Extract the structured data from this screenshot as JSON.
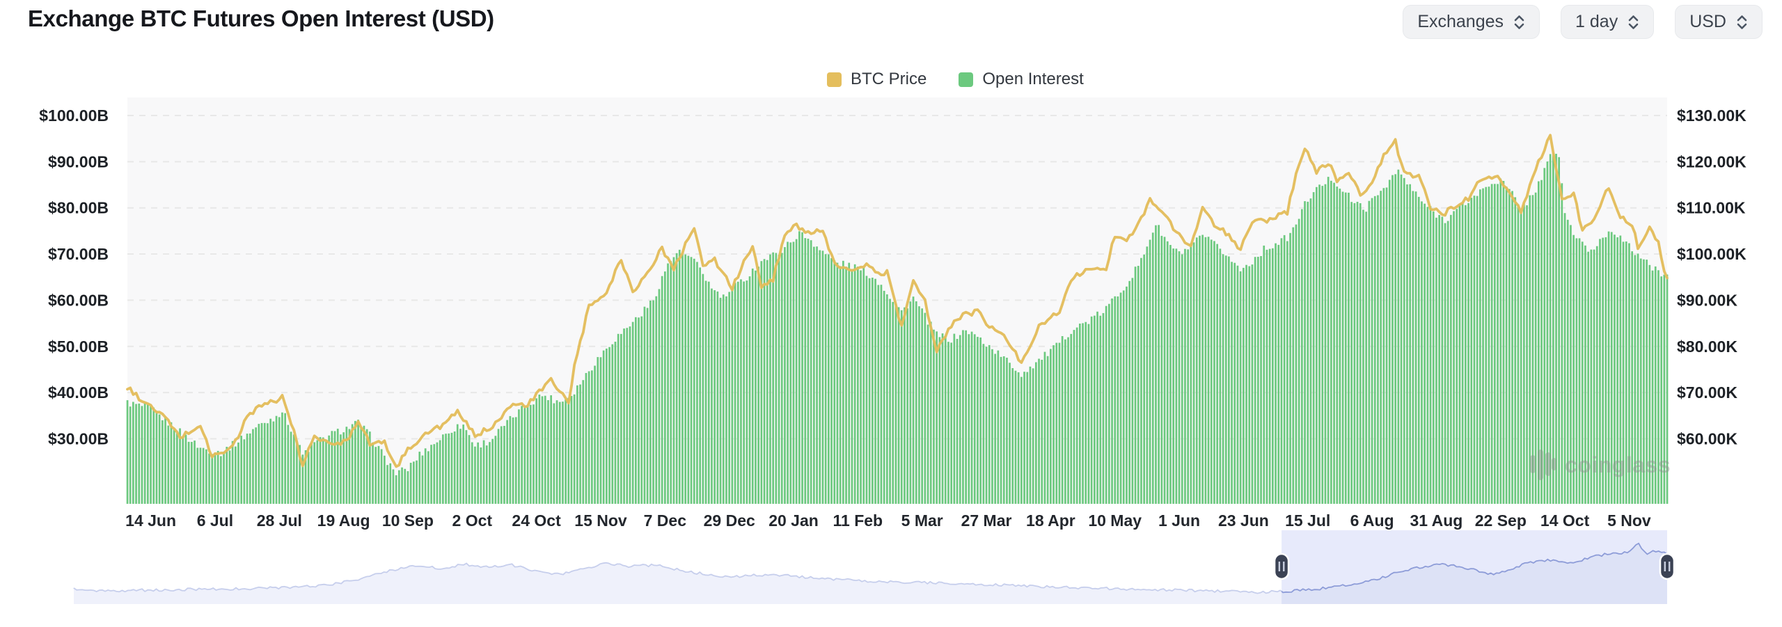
{
  "header": {
    "title": "Exchange BTC Futures Open Interest (USD)"
  },
  "controls": [
    {
      "id": "exchanges",
      "label": "Exchanges"
    },
    {
      "id": "interval",
      "label": "1 day"
    },
    {
      "id": "currency",
      "label": "USD"
    }
  ],
  "legend": [
    {
      "label": "BTC Price",
      "color": "#e4be5d"
    },
    {
      "label": "Open Interest",
      "color": "#6cc97f"
    }
  ],
  "watermark": {
    "text": "coinglass"
  },
  "chart_data": {
    "type": "bar+line",
    "title": "Exchange BTC Futures Open Interest (USD)",
    "visible_range": {
      "start": "2024-06-06",
      "end": "2025-11-15",
      "days": 527
    },
    "grid": "horizontal-dashed",
    "plot_bg": "#f8f8f9",
    "grid_color": "#e8e8e8",
    "left_axis": {
      "series": "Open Interest",
      "unit": "USD billions",
      "tick_labels": [
        "$100.00B",
        "$90.00B",
        "$80.00B",
        "$70.00B",
        "$60.00B",
        "$50.00B",
        "$40.00B",
        "$30.00B"
      ],
      "tick_values": [
        100,
        90,
        80,
        70,
        60,
        50,
        40,
        30
      ]
    },
    "right_axis": {
      "series": "BTC Price",
      "unit": "USD thousands",
      "tick_labels": [
        "$130.00K",
        "$120.00K",
        "$110.00K",
        "$100.00K",
        "$90.00K",
        "$80.00K",
        "$70.00K",
        "$60.00K"
      ],
      "tick_values": [
        130,
        120,
        110,
        100,
        90,
        80,
        70,
        60
      ]
    },
    "x_ticks": [
      "14 Jun",
      "6 Jul",
      "28 Jul",
      "19 Aug",
      "10 Sep",
      "2 Oct",
      "24 Oct",
      "15 Nov",
      "7 Dec",
      "29 Dec",
      "20 Jan",
      "11 Feb",
      "5 Mar",
      "27 Mar",
      "18 Apr",
      "10 May",
      "1 Jun",
      "23 Jun",
      "15 Jul",
      "6 Aug",
      "31 Aug",
      "22 Sep",
      "14 Oct",
      "5 Nov"
    ],
    "x_tick_interval_days": 22,
    "x_tick_first_day_offset": 8,
    "series": [
      {
        "name": "Open Interest",
        "type": "bar",
        "axis": "left",
        "color": "#6cc97f",
        "keypoints_day_value": [
          [
            0,
            37.8
          ],
          [
            8,
            36.5
          ],
          [
            14,
            33.5
          ],
          [
            20,
            30.5
          ],
          [
            25,
            28
          ],
          [
            32,
            27
          ],
          [
            38,
            29.5
          ],
          [
            44,
            32.5
          ],
          [
            50,
            34.5
          ],
          [
            53,
            36
          ],
          [
            57,
            31
          ],
          [
            60,
            26.5
          ],
          [
            64,
            29
          ],
          [
            70,
            31
          ],
          [
            76,
            32.5
          ],
          [
            79,
            33.5
          ],
          [
            84,
            30
          ],
          [
            88,
            26
          ],
          [
            92,
            22.5
          ],
          [
            96,
            23.5
          ],
          [
            100,
            26.5
          ],
          [
            106,
            29.5
          ],
          [
            111,
            32
          ],
          [
            115,
            33
          ],
          [
            119,
            28.5
          ],
          [
            124,
            29.5
          ],
          [
            130,
            33.5
          ],
          [
            136,
            37
          ],
          [
            142,
            39.5
          ],
          [
            148,
            38
          ],
          [
            152,
            39.5
          ],
          [
            156,
            43
          ],
          [
            160,
            46.5
          ],
          [
            165,
            50.5
          ],
          [
            170,
            53.5
          ],
          [
            175,
            56.5
          ],
          [
            180,
            60
          ],
          [
            184,
            66.5
          ],
          [
            188,
            70.5
          ],
          [
            192,
            69.5
          ],
          [
            196,
            67
          ],
          [
            200,
            62.5
          ],
          [
            204,
            60.5
          ],
          [
            208,
            63
          ],
          [
            212,
            65
          ],
          [
            217,
            68.5
          ],
          [
            222,
            70
          ],
          [
            226,
            72
          ],
          [
            230,
            74.5
          ],
          [
            234,
            73
          ],
          [
            238,
            70.5
          ],
          [
            243,
            68
          ],
          [
            248,
            67.5
          ],
          [
            253,
            66
          ],
          [
            258,
            63.5
          ],
          [
            262,
            60
          ],
          [
            265,
            57.5
          ],
          [
            269,
            60.5
          ],
          [
            273,
            56.5
          ],
          [
            277,
            52.5
          ],
          [
            282,
            51.5
          ],
          [
            287,
            53.5
          ],
          [
            291,
            52
          ],
          [
            296,
            49.5
          ],
          [
            300,
            47.5
          ],
          [
            306,
            44
          ],
          [
            312,
            47
          ],
          [
            318,
            50
          ],
          [
            323,
            53.5
          ],
          [
            329,
            55.5
          ],
          [
            334,
            57.5
          ],
          [
            338,
            60.5
          ],
          [
            343,
            64.5
          ],
          [
            347,
            68.5
          ],
          [
            350,
            73.5
          ],
          [
            352,
            76.5
          ],
          [
            356,
            72.5
          ],
          [
            360,
            70
          ],
          [
            364,
            71.5
          ],
          [
            368,
            74
          ],
          [
            372,
            72
          ],
          [
            376,
            70
          ],
          [
            381,
            66.5
          ],
          [
            385,
            68.5
          ],
          [
            389,
            71
          ],
          [
            394,
            72.5
          ],
          [
            398,
            74
          ],
          [
            401,
            78
          ],
          [
            404,
            82
          ],
          [
            408,
            84.5
          ],
          [
            412,
            86.5
          ],
          [
            416,
            84
          ],
          [
            420,
            81
          ],
          [
            424,
            80
          ],
          [
            428,
            83
          ],
          [
            432,
            86
          ],
          [
            435,
            88
          ],
          [
            439,
            84.5
          ],
          [
            443,
            81.5
          ],
          [
            447,
            79
          ],
          [
            451,
            77.5
          ],
          [
            455,
            79.5
          ],
          [
            459,
            81.5
          ],
          [
            463,
            83.5
          ],
          [
            467,
            85.5
          ],
          [
            470,
            86
          ],
          [
            474,
            83
          ],
          [
            477,
            79.5
          ],
          [
            482,
            84
          ],
          [
            485,
            88
          ],
          [
            488,
            92.5
          ],
          [
            490,
            91
          ],
          [
            492,
            79
          ],
          [
            495,
            74.5
          ],
          [
            498,
            72
          ],
          [
            501,
            70.5
          ],
          [
            504,
            73
          ],
          [
            508,
            75.5
          ],
          [
            511,
            73.5
          ],
          [
            514,
            71.5
          ],
          [
            517,
            70
          ],
          [
            520,
            68
          ],
          [
            523,
            66.5
          ],
          [
            527,
            65.5
          ]
        ]
      },
      {
        "name": "BTC Price",
        "type": "line",
        "axis": "right",
        "color": "#e3bd5c",
        "keypoints_day_value": [
          [
            0,
            71
          ],
          [
            8,
            66.8
          ],
          [
            12,
            65.2
          ],
          [
            18,
            60.3
          ],
          [
            25,
            62.9
          ],
          [
            29,
            56.2
          ],
          [
            33,
            57
          ],
          [
            37,
            59.3
          ],
          [
            41,
            64.8
          ],
          [
            46,
            67.5
          ],
          [
            51,
            68
          ],
          [
            53,
            69.3
          ],
          [
            57,
            61.4
          ],
          [
            60,
            54
          ],
          [
            64,
            60.9
          ],
          [
            69,
            58.7
          ],
          [
            75,
            59.5
          ],
          [
            79,
            64.2
          ],
          [
            83,
            59
          ],
          [
            88,
            59.1
          ],
          [
            92,
            53.9
          ],
          [
            96,
            57.6
          ],
          [
            100,
            60
          ],
          [
            104,
            61.7
          ],
          [
            109,
            63.4
          ],
          [
            113,
            65.8
          ],
          [
            119,
            60.7
          ],
          [
            124,
            62.3
          ],
          [
            131,
            67
          ],
          [
            137,
            67.4
          ],
          [
            145,
            72.7
          ],
          [
            151,
            67.9
          ],
          [
            153,
            75.6
          ],
          [
            158,
            88.7
          ],
          [
            163,
            90.6
          ],
          [
            169,
            98.9
          ],
          [
            173,
            91.9
          ],
          [
            178,
            95.9
          ],
          [
            183,
            101.2
          ],
          [
            187,
            96.6
          ],
          [
            194,
            106.1
          ],
          [
            197,
            97.5
          ],
          [
            201,
            98.7
          ],
          [
            207,
            92.6
          ],
          [
            214,
            102.1
          ],
          [
            217,
            92.5
          ],
          [
            221,
            94.5
          ],
          [
            225,
            104.5
          ],
          [
            229,
            106.1
          ],
          [
            233,
            104.8
          ],
          [
            238,
            104.7
          ],
          [
            242,
            97.8
          ],
          [
            246,
            96.5
          ],
          [
            253,
            97.5
          ],
          [
            257,
            95.6
          ],
          [
            260,
            96.1
          ],
          [
            265,
            84.2
          ],
          [
            269,
            94.2
          ],
          [
            273,
            89.9
          ],
          [
            277,
            78.6
          ],
          [
            281,
            83.9
          ],
          [
            286,
            86.8
          ],
          [
            291,
            87.5
          ],
          [
            295,
            84.3
          ],
          [
            300,
            82.5
          ],
          [
            306,
            76.3
          ],
          [
            312,
            84.5
          ],
          [
            319,
            87.5
          ],
          [
            323,
            94.7
          ],
          [
            329,
            96.5
          ],
          [
            335,
            97
          ],
          [
            338,
            104.1
          ],
          [
            342,
            103.3
          ],
          [
            346,
            106.4
          ],
          [
            350,
            111.7
          ],
          [
            354,
            109.4
          ],
          [
            359,
            104.6
          ],
          [
            364,
            101.6
          ],
          [
            368,
            110.3
          ],
          [
            372,
            106
          ],
          [
            376,
            104.6
          ],
          [
            381,
            100.9
          ],
          [
            385,
            107.1
          ],
          [
            389,
            107.2
          ],
          [
            393,
            108
          ],
          [
            397,
            108.9
          ],
          [
            400,
            117.5
          ],
          [
            403,
            122.8
          ],
          [
            407,
            117.9
          ],
          [
            411,
            119.9
          ],
          [
            414,
            115.8
          ],
          [
            418,
            117.8
          ],
          [
            422,
            113.2
          ],
          [
            426,
            115
          ],
          [
            430,
            121.4
          ],
          [
            434,
            124.3
          ],
          [
            437,
            117.4
          ],
          [
            442,
            116.9
          ],
          [
            446,
            110.1
          ],
          [
            450,
            108.4
          ],
          [
            455,
            110.7
          ],
          [
            459,
            112.1
          ],
          [
            463,
            115.9
          ],
          [
            469,
            117.1
          ],
          [
            473,
            112.8
          ],
          [
            477,
            109.2
          ],
          [
            482,
            118.6
          ],
          [
            487,
            125.5
          ],
          [
            491,
            112
          ],
          [
            495,
            113.2
          ],
          [
            498,
            104.9
          ],
          [
            502,
            108
          ],
          [
            507,
            114.5
          ],
          [
            511,
            108
          ],
          [
            515,
            106.6
          ],
          [
            517,
            101.5
          ],
          [
            521,
            105.6
          ],
          [
            524,
            102.9
          ],
          [
            526,
            96.5
          ],
          [
            527,
            95.2
          ]
        ]
      }
    ],
    "navigator": {
      "selection_fraction": [
        0.758,
        1.0
      ],
      "line_color": "#8d9cd8",
      "area_color": "#dce2f6",
      "selection_bg": "#e7eafb",
      "handle_color": "#3b4254",
      "shape_fraction_y": [
        [
          0,
          0.8
        ],
        [
          0.02,
          0.82
        ],
        [
          0.05,
          0.81
        ],
        [
          0.08,
          0.8
        ],
        [
          0.11,
          0.79
        ],
        [
          0.14,
          0.77
        ],
        [
          0.16,
          0.74
        ],
        [
          0.18,
          0.66
        ],
        [
          0.2,
          0.54
        ],
        [
          0.215,
          0.47
        ],
        [
          0.23,
          0.52
        ],
        [
          0.245,
          0.46
        ],
        [
          0.26,
          0.5
        ],
        [
          0.275,
          0.47
        ],
        [
          0.29,
          0.56
        ],
        [
          0.305,
          0.6
        ],
        [
          0.32,
          0.52
        ],
        [
          0.335,
          0.45
        ],
        [
          0.35,
          0.49
        ],
        [
          0.365,
          0.47
        ],
        [
          0.385,
          0.56
        ],
        [
          0.41,
          0.63
        ],
        [
          0.44,
          0.6
        ],
        [
          0.47,
          0.66
        ],
        [
          0.51,
          0.7
        ],
        [
          0.55,
          0.72
        ],
        [
          0.59,
          0.75
        ],
        [
          0.63,
          0.78
        ],
        [
          0.67,
          0.8
        ],
        [
          0.71,
          0.82
        ],
        [
          0.74,
          0.84
        ],
        [
          0.76,
          0.83
        ],
        [
          0.78,
          0.8
        ],
        [
          0.8,
          0.74
        ],
        [
          0.815,
          0.68
        ],
        [
          0.83,
          0.58
        ],
        [
          0.845,
          0.5
        ],
        [
          0.86,
          0.46
        ],
        [
          0.875,
          0.52
        ],
        [
          0.89,
          0.6
        ],
        [
          0.9,
          0.55
        ],
        [
          0.912,
          0.44
        ],
        [
          0.925,
          0.4
        ],
        [
          0.94,
          0.45
        ],
        [
          0.95,
          0.38
        ],
        [
          0.962,
          0.32
        ],
        [
          0.975,
          0.3
        ],
        [
          0.982,
          0.18
        ],
        [
          0.987,
          0.32
        ],
        [
          0.993,
          0.28
        ],
        [
          1,
          0.31
        ]
      ]
    }
  }
}
